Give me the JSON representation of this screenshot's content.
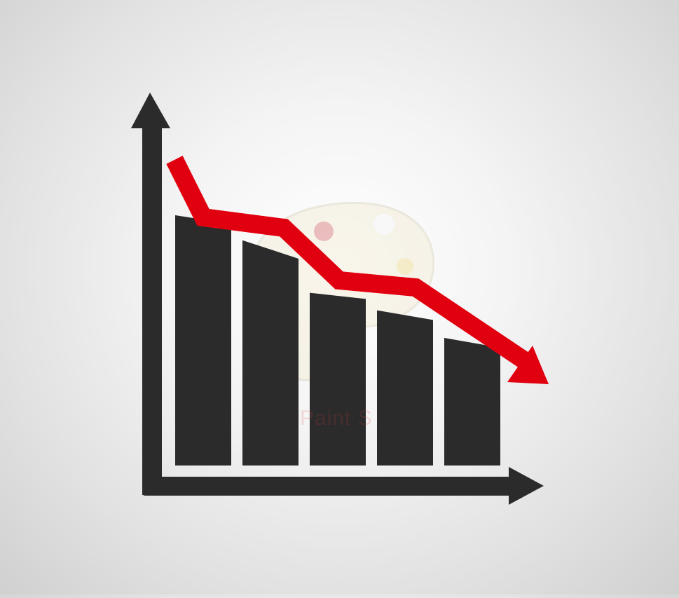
{
  "illustration": {
    "subject": "decline-chart-icon",
    "colors": {
      "background": "#e6e6e6",
      "bars": "#2b2b2b",
      "axes": "#2b2b2b",
      "trend_arrow": "#e10010"
    },
    "bars": [
      {
        "relative_height": 1.0
      },
      {
        "relative_height": 0.9
      },
      {
        "relative_height": 0.69
      },
      {
        "relative_height": 0.62
      },
      {
        "relative_height": 0.51
      }
    ],
    "trend": "downward"
  },
  "watermark": {
    "icon": "paint-palette-icon",
    "text": "Paint S"
  }
}
